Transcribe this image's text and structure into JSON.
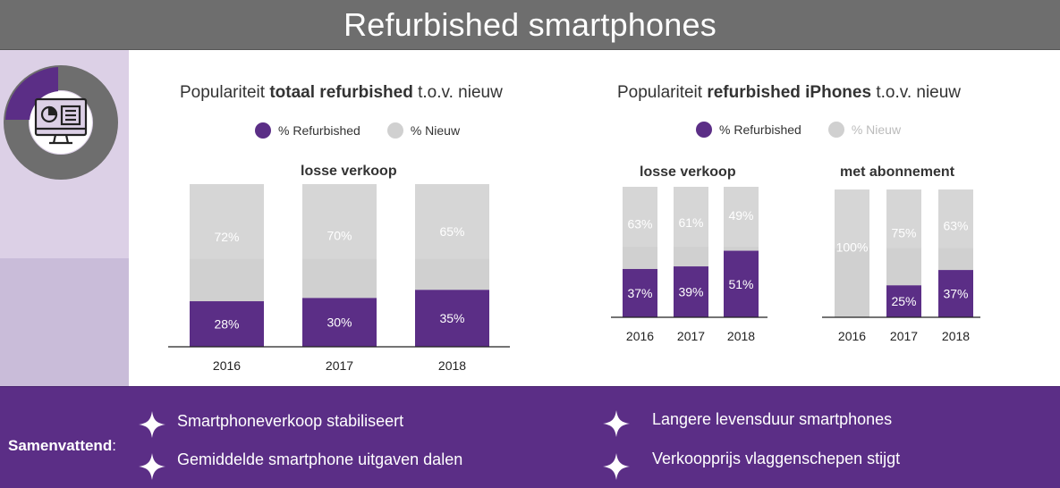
{
  "header": {
    "title": "Refurbished smartphones"
  },
  "colors": {
    "refurbished": "#5b2e86",
    "nieuw": "#d0d0d0",
    "nieuw_light": "#dddddd",
    "header_bg": "#6e6e6e",
    "footer_bg": "#5b2e86"
  },
  "left_panel": {
    "icon": "computer-dashboard-icon",
    "donut_icon": "donut-chart-icon"
  },
  "chart_total": {
    "title_pre": "Populariteit ",
    "title_bold": "totaal refurbished",
    "title_post": " t.o.v. nieuw",
    "legend": {
      "refurbished": "% Refurbished",
      "nieuw": "% Nieuw"
    }
  },
  "chart_iphones": {
    "title_pre": "Populariteit ",
    "title_bold": "refurbished iPhones",
    "title_post": " t.o.v. nieuw",
    "legend": {
      "refurbished": "% Refurbished",
      "nieuw": "% Nieuw"
    }
  },
  "chart_data": [
    {
      "type": "bar",
      "stacked": true,
      "title": "losse verkoop",
      "group": "Populariteit totaal refurbished t.o.v. nieuw",
      "categories": [
        "2016",
        "2017",
        "2018"
      ],
      "series": [
        {
          "name": "% Refurbished",
          "values": [
            28,
            30,
            35
          ],
          "labels": [
            "28%",
            "30%",
            "35%"
          ]
        },
        {
          "name": "% Nieuw",
          "values": [
            72,
            70,
            65
          ],
          "labels": [
            "72%",
            "70%",
            "65%"
          ]
        }
      ],
      "ylim": [
        0,
        100
      ]
    },
    {
      "type": "bar",
      "stacked": true,
      "title": "losse verkoop",
      "group": "Populariteit refurbished iPhones t.o.v. nieuw",
      "categories": [
        "2016",
        "2017",
        "2018"
      ],
      "series": [
        {
          "name": "% Refurbished",
          "values": [
            37,
            39,
            51
          ],
          "labels": [
            "37%",
            "39%",
            "51%"
          ]
        },
        {
          "name": "% Nieuw",
          "values": [
            63,
            61,
            49
          ],
          "labels": [
            "63%",
            "61%",
            "49%"
          ]
        }
      ],
      "ylim": [
        0,
        100
      ]
    },
    {
      "type": "bar",
      "stacked": true,
      "title": "met abonnement",
      "group": "Populariteit refurbished iPhones t.o.v. nieuw",
      "categories": [
        "2016",
        "2017",
        "2018"
      ],
      "series": [
        {
          "name": "% Refurbished",
          "values": [
            0,
            25,
            37
          ],
          "labels": [
            "",
            "25%",
            "37%"
          ]
        },
        {
          "name": "% Nieuw",
          "values": [
            100,
            75,
            63
          ],
          "labels": [
            "100%",
            "75%",
            "63%"
          ]
        }
      ],
      "ylim": [
        0,
        100
      ]
    }
  ],
  "summary": {
    "label": "Samenvattend",
    "colon": ":",
    "items": [
      "Smartphoneverkoop stabiliseert",
      "Gemiddelde smartphone uitgaven dalen",
      "Langere levensduur smartphones",
      "Verkoopprijs vlaggenschepen stijgt"
    ],
    "bullet_icon": "four-point-star-icon"
  }
}
